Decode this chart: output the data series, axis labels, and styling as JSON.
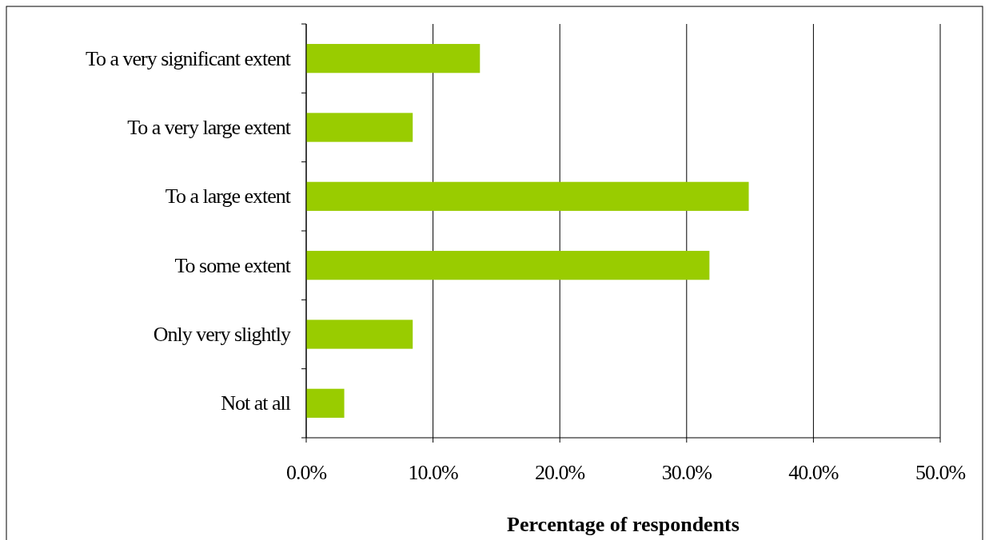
{
  "chart_data": {
    "type": "bar",
    "orientation": "horizontal",
    "xlabel": "Percentage of respondents",
    "categories": [
      "To a very significant extent",
      "To a very large extent",
      "To a large extent",
      "To some extent",
      "Only very slightly",
      "Not at all"
    ],
    "values": [
      13.7,
      8.4,
      34.9,
      31.8,
      8.4,
      3.0
    ],
    "color": "#99cc00",
    "xlim": [
      0,
      50
    ],
    "xticks": [
      {
        "value": 0,
        "label": "0.0%"
      },
      {
        "value": 10,
        "label": "10.0%"
      },
      {
        "value": 20,
        "label": "20.0%"
      },
      {
        "value": 30,
        "label": "30.0%"
      },
      {
        "value": 40,
        "label": "40.0%"
      },
      {
        "value": 50,
        "label": "50.0%"
      }
    ],
    "grid": "x"
  }
}
